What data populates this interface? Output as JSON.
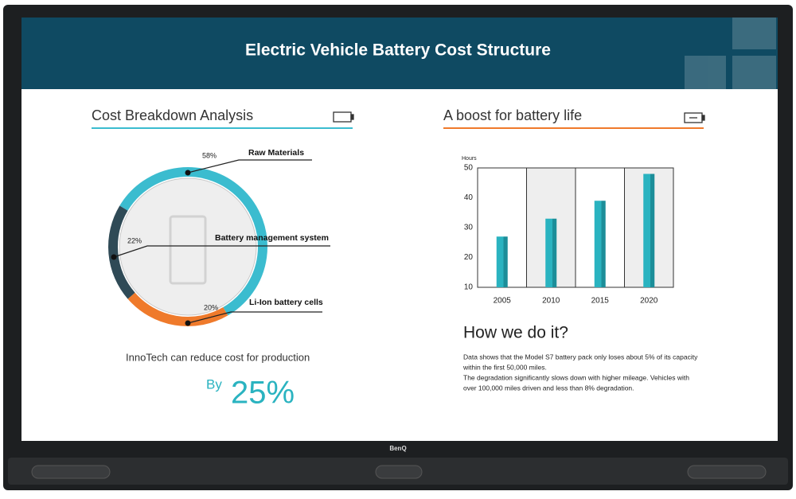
{
  "brand": "BenQ",
  "header": {
    "title": "Electric Vehicle Battery Cost Structure"
  },
  "left": {
    "heading": "Cost Breakdown Analysis",
    "caption": "InnoTech can reduce cost for production",
    "by": "By",
    "amount": "25%"
  },
  "right": {
    "heading": "A boost for battery life",
    "subheading": "How we do it?",
    "paragraph": [
      "Data shows that the Model S7 battery pack only loses about 5% of its capacity",
      "within the first 50,000 miles.",
      "The degradation significantly slows down with higher mileage. Vehicles with",
      "over 100,000 miles driven and less than 8% degradation."
    ]
  },
  "chart_data": [
    {
      "type": "pie",
      "donut": true,
      "categories": [
        "Raw Materials",
        "Battery management system",
        "Li-Ion battery cells"
      ],
      "values": [
        58,
        22,
        20
      ],
      "value_labels": [
        "58%",
        "22%",
        "20%"
      ],
      "colors": [
        "#3bbccf",
        "#ef7a2b",
        "#2f4a56"
      ]
    },
    {
      "type": "bar",
      "y_label": "Hours",
      "categories": [
        "2005",
        "2010",
        "2015",
        "2020"
      ],
      "values": [
        27,
        33,
        39,
        48
      ],
      "color": "#2ab3c0",
      "ylim": [
        10,
        50
      ],
      "yticks": [
        10,
        20,
        30,
        40,
        50
      ],
      "grid": true
    }
  ]
}
